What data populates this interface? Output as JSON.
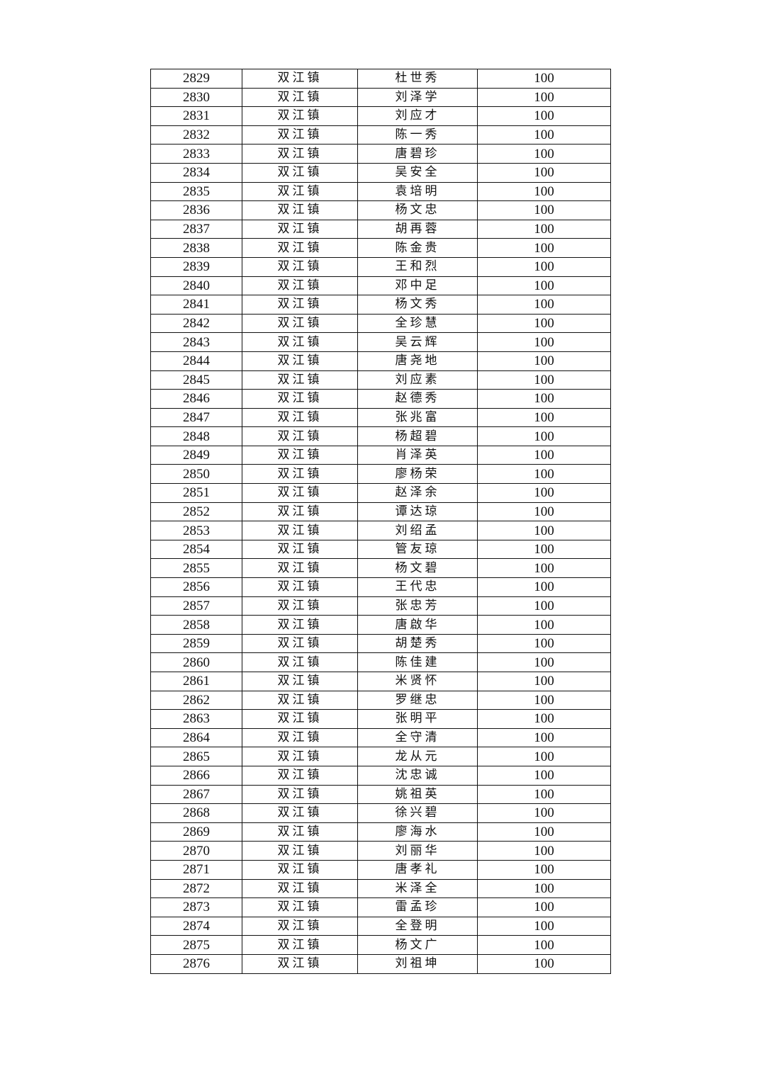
{
  "table": {
    "rows": [
      {
        "no": "2829",
        "town": "双江镇",
        "name": "杜世秀",
        "amount": "100"
      },
      {
        "no": "2830",
        "town": "双江镇",
        "name": "刘泽学",
        "amount": "100"
      },
      {
        "no": "2831",
        "town": "双江镇",
        "name": "刘应才",
        "amount": "100"
      },
      {
        "no": "2832",
        "town": "双江镇",
        "name": "陈一秀",
        "amount": "100"
      },
      {
        "no": "2833",
        "town": "双江镇",
        "name": "唐碧珍",
        "amount": "100"
      },
      {
        "no": "2834",
        "town": "双江镇",
        "name": "吴安全",
        "amount": "100"
      },
      {
        "no": "2835",
        "town": "双江镇",
        "name": "袁培明",
        "amount": "100"
      },
      {
        "no": "2836",
        "town": "双江镇",
        "name": "杨文忠",
        "amount": "100"
      },
      {
        "no": "2837",
        "town": "双江镇",
        "name": "胡再蓉",
        "amount": "100"
      },
      {
        "no": "2838",
        "town": "双江镇",
        "name": "陈金贵",
        "amount": "100"
      },
      {
        "no": "2839",
        "town": "双江镇",
        "name": "王和烈",
        "amount": "100"
      },
      {
        "no": "2840",
        "town": "双江镇",
        "name": "邓中足",
        "amount": "100"
      },
      {
        "no": "2841",
        "town": "双江镇",
        "name": "杨文秀",
        "amount": "100"
      },
      {
        "no": "2842",
        "town": "双江镇",
        "name": "全珍慧",
        "amount": "100"
      },
      {
        "no": "2843",
        "town": "双江镇",
        "name": "吴云辉",
        "amount": "100"
      },
      {
        "no": "2844",
        "town": "双江镇",
        "name": "唐尧地",
        "amount": "100"
      },
      {
        "no": "2845",
        "town": "双江镇",
        "name": "刘应素",
        "amount": "100"
      },
      {
        "no": "2846",
        "town": "双江镇",
        "name": "赵德秀",
        "amount": "100"
      },
      {
        "no": "2847",
        "town": "双江镇",
        "name": "张兆富",
        "amount": "100"
      },
      {
        "no": "2848",
        "town": "双江镇",
        "name": "杨超碧",
        "amount": "100"
      },
      {
        "no": "2849",
        "town": "双江镇",
        "name": "肖泽英",
        "amount": "100"
      },
      {
        "no": "2850",
        "town": "双江镇",
        "name": "廖杨荣",
        "amount": "100"
      },
      {
        "no": "2851",
        "town": "双江镇",
        "name": "赵泽余",
        "amount": "100"
      },
      {
        "no": "2852",
        "town": "双江镇",
        "name": "谭达琼",
        "amount": "100"
      },
      {
        "no": "2853",
        "town": "双江镇",
        "name": "刘绍孟",
        "amount": "100"
      },
      {
        "no": "2854",
        "town": "双江镇",
        "name": "管友琼",
        "amount": "100"
      },
      {
        "no": "2855",
        "town": "双江镇",
        "name": "杨文碧",
        "amount": "100"
      },
      {
        "no": "2856",
        "town": "双江镇",
        "name": "王代忠",
        "amount": "100"
      },
      {
        "no": "2857",
        "town": "双江镇",
        "name": "张忠芳",
        "amount": "100"
      },
      {
        "no": "2858",
        "town": "双江镇",
        "name": "唐啟华",
        "amount": "100"
      },
      {
        "no": "2859",
        "town": "双江镇",
        "name": "胡楚秀",
        "amount": "100"
      },
      {
        "no": "2860",
        "town": "双江镇",
        "name": "陈佳建",
        "amount": "100"
      },
      {
        "no": "2861",
        "town": "双江镇",
        "name": "米贤怀",
        "amount": "100"
      },
      {
        "no": "2862",
        "town": "双江镇",
        "name": "罗继忠",
        "amount": "100"
      },
      {
        "no": "2863",
        "town": "双江镇",
        "name": "张明平",
        "amount": "100"
      },
      {
        "no": "2864",
        "town": "双江镇",
        "name": "全守清",
        "amount": "100"
      },
      {
        "no": "2865",
        "town": "双江镇",
        "name": "龙从元",
        "amount": "100"
      },
      {
        "no": "2866",
        "town": "双江镇",
        "name": "沈忠诚",
        "amount": "100"
      },
      {
        "no": "2867",
        "town": "双江镇",
        "name": "姚祖英",
        "amount": "100"
      },
      {
        "no": "2868",
        "town": "双江镇",
        "name": "徐兴碧",
        "amount": "100"
      },
      {
        "no": "2869",
        "town": "双江镇",
        "name": "廖海水",
        "amount": "100"
      },
      {
        "no": "2870",
        "town": "双江镇",
        "name": "刘丽华",
        "amount": "100"
      },
      {
        "no": "2871",
        "town": "双江镇",
        "name": "唐孝礼",
        "amount": "100"
      },
      {
        "no": "2872",
        "town": "双江镇",
        "name": "米泽全",
        "amount": "100"
      },
      {
        "no": "2873",
        "town": "双江镇",
        "name": "雷孟珍",
        "amount": "100"
      },
      {
        "no": "2874",
        "town": "双江镇",
        "name": "全登明",
        "amount": "100"
      },
      {
        "no": "2875",
        "town": "双江镇",
        "name": "杨文广",
        "amount": "100"
      },
      {
        "no": "2876",
        "town": "双江镇",
        "name": "刘祖坤",
        "amount": "100"
      }
    ]
  }
}
